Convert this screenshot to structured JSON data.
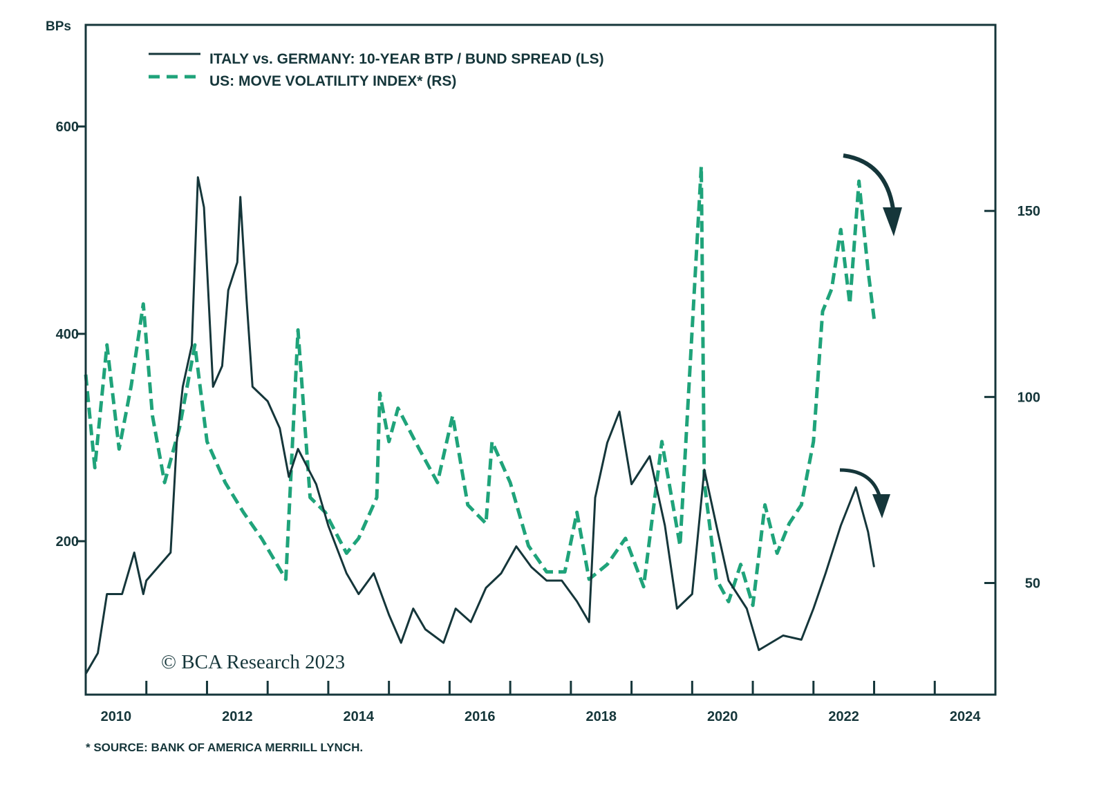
{
  "chart_data": {
    "type": "line",
    "title": "",
    "left_axis_label": "BPs",
    "xlim": [
      2010,
      2025
    ],
    "ylim_left": [
      52,
      698
    ],
    "ylim_right": [
      20,
      200
    ],
    "x_ticks": [
      2010,
      2012,
      2014,
      2016,
      2018,
      2020,
      2022,
      2024
    ],
    "x_tick_labels": [
      "2010",
      "2012",
      "2014",
      "2016",
      "2018",
      "2020",
      "2022",
      "2024"
    ],
    "y_ticks_left": [
      200,
      400,
      600
    ],
    "y_tick_labels_left": [
      "200",
      "400",
      "600"
    ],
    "y_ticks_right": [
      50,
      100,
      150
    ],
    "y_tick_labels_right": [
      "50",
      "100",
      "150"
    ],
    "legend_position": "top-left",
    "series": [
      {
        "name": "ITALY vs. GERMANY: 10-YEAR BTP / BUND SPREAD (LS)",
        "axis": "left",
        "style": "solid",
        "color": "#15363a",
        "x": [
          2010.0,
          2010.2,
          2010.35,
          2010.6,
          2010.8,
          2010.95,
          2011.0,
          2011.4,
          2011.5,
          2011.6,
          2011.75,
          2011.85,
          2011.95,
          2012.1,
          2012.25,
          2012.35,
          2012.5,
          2012.55,
          2012.65,
          2012.75,
          2013.0,
          2013.2,
          2013.35,
          2013.5,
          2013.8,
          2014.0,
          2014.3,
          2014.5,
          2014.75,
          2015.0,
          2015.2,
          2015.4,
          2015.6,
          2015.9,
          2016.1,
          2016.35,
          2016.6,
          2016.85,
          2017.1,
          2017.35,
          2017.6,
          2017.85,
          2018.1,
          2018.3,
          2018.4,
          2018.6,
          2018.8,
          2019.0,
          2019.3,
          2019.55,
          2019.75,
          2020.0,
          2020.2,
          2020.4,
          2020.6,
          2020.9,
          2021.1,
          2021.5,
          2021.8,
          2022.0,
          2022.2,
          2022.45,
          2022.7,
          2022.9,
          2023.0
        ],
        "values": [
          72,
          92,
          149,
          149,
          189,
          149,
          162,
          189,
          295,
          349,
          389,
          551,
          522,
          349,
          369,
          442,
          469,
          532,
          435,
          349,
          335,
          309,
          262,
          289,
          255,
          215,
          169,
          149,
          169,
          129,
          102,
          135,
          115,
          102,
          135,
          122,
          155,
          169,
          195,
          175,
          162,
          162,
          142,
          122,
          242,
          295,
          325,
          255,
          282,
          215,
          135,
          149,
          269,
          215,
          162,
          135,
          95,
          109,
          105,
          135,
          169,
          215,
          252,
          209,
          175
        ]
      },
      {
        "name": "US: MOVE VOLATILITY INDEX* (RS)",
        "axis": "right",
        "style": "dashed",
        "color": "#1fa37a",
        "x": [
          2010.0,
          2010.15,
          2010.35,
          2010.55,
          2010.75,
          2010.95,
          2011.1,
          2011.3,
          2011.55,
          2011.8,
          2012.0,
          2012.3,
          2012.6,
          2012.9,
          2013.3,
          2013.5,
          2013.7,
          2013.95,
          2014.3,
          2014.5,
          2014.8,
          2014.85,
          2015.0,
          2015.15,
          2015.5,
          2015.8,
          2016.05,
          2016.3,
          2016.6,
          2016.7,
          2017.0,
          2017.3,
          2017.6,
          2017.9,
          2018.1,
          2018.3,
          2018.6,
          2018.9,
          2019.2,
          2019.5,
          2019.8,
          2020.15,
          2020.2,
          2020.4,
          2020.6,
          2020.8,
          2021.0,
          2021.2,
          2021.4,
          2021.6,
          2021.8,
          2022.0,
          2022.15,
          2022.3,
          2022.45,
          2022.6,
          2022.75,
          2022.9,
          2023.0
        ],
        "values": [
          106,
          81,
          114,
          86,
          103,
          125,
          95,
          77,
          92,
          114,
          88,
          77,
          69,
          62,
          51,
          118,
          73,
          69,
          58,
          62,
          73,
          101,
          88,
          97,
          86,
          77,
          95,
          71,
          66,
          88,
          77,
          60,
          53,
          53,
          69,
          51,
          55,
          62,
          49,
          88,
          60,
          162,
          77,
          51,
          45,
          55,
          44,
          71,
          58,
          66,
          71,
          88,
          123,
          129,
          145,
          125,
          158,
          134,
          121
        ]
      }
    ],
    "annotations": [
      "© BCA Research 2023",
      "* SOURCE: BANK OF AMERICA MERRILL LYNCH."
    ]
  }
}
